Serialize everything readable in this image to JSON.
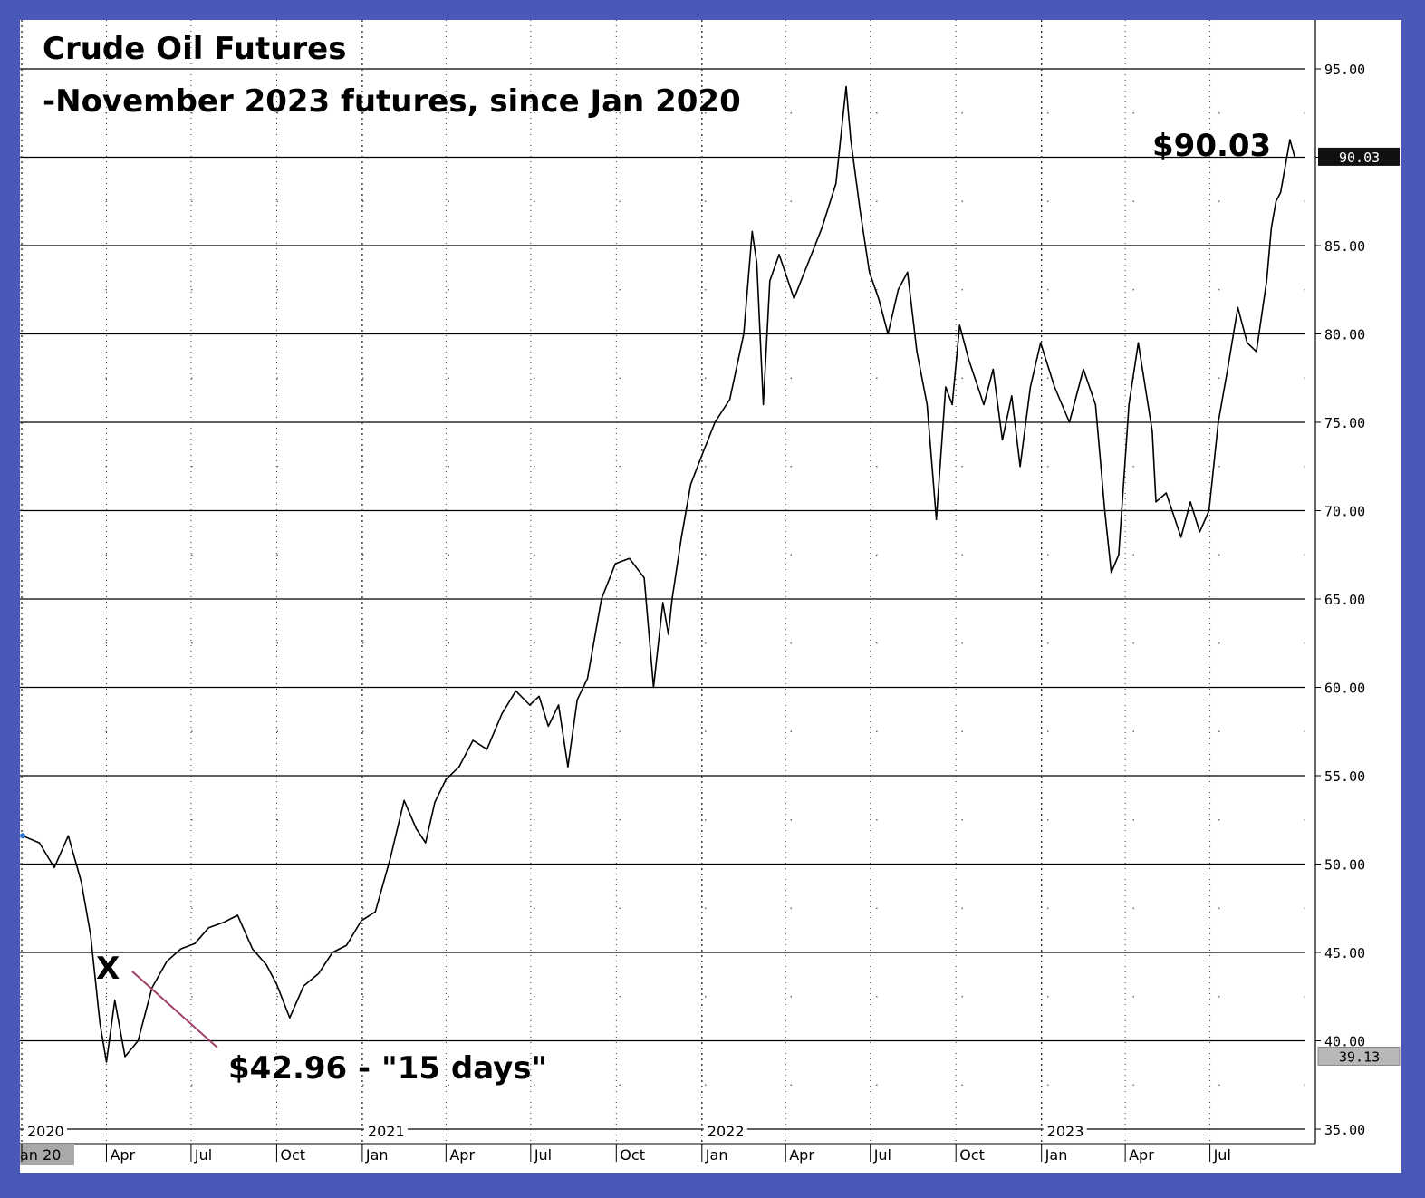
{
  "chart_data": {
    "type": "line",
    "title": "Crude Oil Futures",
    "subtitle": "-November 2023 futures, since Jan 2020",
    "ylim": [
      35,
      96.5
    ],
    "y_ticks": [
      "35.00",
      "40.00",
      "45.00",
      "50.00",
      "55.00",
      "60.00",
      "65.00",
      "70.00",
      "75.00",
      "80.00",
      "85.00",
      "90.00",
      "95.00"
    ],
    "grid": true,
    "x_year_labels": [
      "2020",
      "2021",
      "2022",
      "2023"
    ],
    "x_month_labels": [
      "an 20",
      "Apr",
      "Jul",
      "Oct",
      "Jan",
      "Apr",
      "Jul",
      "Oct",
      "Jan",
      "Apr",
      "Jul",
      "Oct",
      "Jan",
      "Apr",
      "Jul"
    ],
    "last_value_label": "90.03",
    "low_value_label": "39.13",
    "annotations": {
      "high_label": "$90.03",
      "x_marker": "X",
      "low_label": "$42.96 - \"15 days\""
    },
    "colors": {
      "line": "#000000",
      "arrow": "#a0406a",
      "frame": "#4a58b8"
    },
    "series": [
      {
        "x": [
          "2020-01-02",
          "2020-01-20",
          "2020-02-05",
          "2020-02-20",
          "2020-03-05",
          "2020-03-15",
          "2020-03-25",
          "2020-04-01",
          "2020-04-10",
          "2020-04-21",
          "2020-05-05",
          "2020-05-20",
          "2020-06-05",
          "2020-06-20",
          "2020-07-05",
          "2020-07-20",
          "2020-08-05",
          "2020-08-20",
          "2020-09-05",
          "2020-09-20",
          "2020-10-01",
          "2020-10-15",
          "2020-10-30",
          "2020-11-15",
          "2020-11-30",
          "2020-12-15",
          "2020-12-31",
          "2021-01-15",
          "2021-01-31",
          "2021-02-15",
          "2021-02-28",
          "2021-03-10",
          "2021-03-20",
          "2021-04-01",
          "2021-04-15",
          "2021-04-30",
          "2021-05-15",
          "2021-05-31",
          "2021-06-15",
          "2021-06-30",
          "2021-07-10",
          "2021-07-20",
          "2021-07-31",
          "2021-08-10",
          "2021-08-20",
          "2021-08-31",
          "2021-09-15",
          "2021-09-30",
          "2021-10-15",
          "2021-10-31",
          "2021-11-10",
          "2021-11-20",
          "2021-11-26",
          "2021-11-30",
          "2021-12-10",
          "2021-12-20",
          "2021-12-31",
          "2022-01-15",
          "2022-01-31",
          "2022-02-15",
          "2022-02-24",
          "2022-03-01",
          "2022-03-08",
          "2022-03-15",
          "2022-03-25",
          "2022-04-10",
          "2022-04-25",
          "2022-05-10",
          "2022-05-25",
          "2022-06-05",
          "2022-06-10",
          "2022-06-20",
          "2022-06-30",
          "2022-07-10",
          "2022-07-20",
          "2022-07-31",
          "2022-08-10",
          "2022-08-20",
          "2022-08-31",
          "2022-09-10",
          "2022-09-20",
          "2022-09-27",
          "2022-10-05",
          "2022-10-15",
          "2022-10-31",
          "2022-11-10",
          "2022-11-20",
          "2022-11-30",
          "2022-12-09",
          "2022-12-20",
          "2022-12-31",
          "2023-01-15",
          "2023-01-31",
          "2023-02-15",
          "2023-02-28",
          "2023-03-10",
          "2023-03-17",
          "2023-03-25",
          "2023-04-05",
          "2023-04-15",
          "2023-04-30",
          "2023-05-04",
          "2023-05-15",
          "2023-05-31",
          "2023-06-10",
          "2023-06-20",
          "2023-06-30",
          "2023-07-10",
          "2023-07-20",
          "2023-07-31",
          "2023-08-10",
          "2023-08-20",
          "2023-08-31",
          "2023-09-05",
          "2023-09-10",
          "2023-09-15",
          "2023-09-20",
          "2023-09-25",
          "2023-09-30"
        ],
        "y": [
          51.6,
          51.2,
          49.8,
          51.6,
          49.0,
          46.0,
          41.0,
          38.8,
          42.3,
          39.1,
          40.0,
          43.0,
          44.5,
          45.2,
          45.5,
          46.4,
          46.7,
          47.1,
          45.2,
          44.3,
          43.2,
          41.3,
          43.1,
          43.8,
          45.0,
          45.4,
          46.8,
          47.3,
          50.3,
          53.6,
          52.0,
          51.2,
          53.5,
          54.8,
          55.5,
          57.0,
          56.5,
          58.5,
          59.8,
          59.0,
          59.5,
          57.8,
          59.0,
          55.5,
          59.3,
          60.5,
          65.0,
          67.0,
          67.3,
          66.2,
          60.0,
          64.8,
          63.0,
          65.0,
          68.5,
          71.5,
          73.0,
          75.0,
          76.3,
          80.0,
          85.8,
          84.0,
          76.0,
          83.0,
          84.5,
          82.0,
          84.0,
          86.0,
          88.5,
          94.0,
          91.0,
          87.0,
          83.5,
          82.0,
          80.0,
          82.5,
          83.5,
          79.0,
          76.0,
          69.5,
          77.0,
          76.0,
          80.5,
          78.5,
          76.0,
          78.0,
          74.0,
          76.5,
          72.5,
          77.0,
          79.5,
          77.0,
          75.0,
          78.0,
          76.0,
          70.0,
          66.5,
          67.5,
          76.0,
          79.5,
          74.5,
          70.5,
          71.0,
          68.5,
          70.5,
          68.8,
          70.0,
          75.0,
          78.0,
          81.5,
          79.5,
          79.0,
          83.0,
          86.0,
          87.5,
          88.0,
          89.5,
          91.0,
          90.03
        ]
      }
    ]
  }
}
